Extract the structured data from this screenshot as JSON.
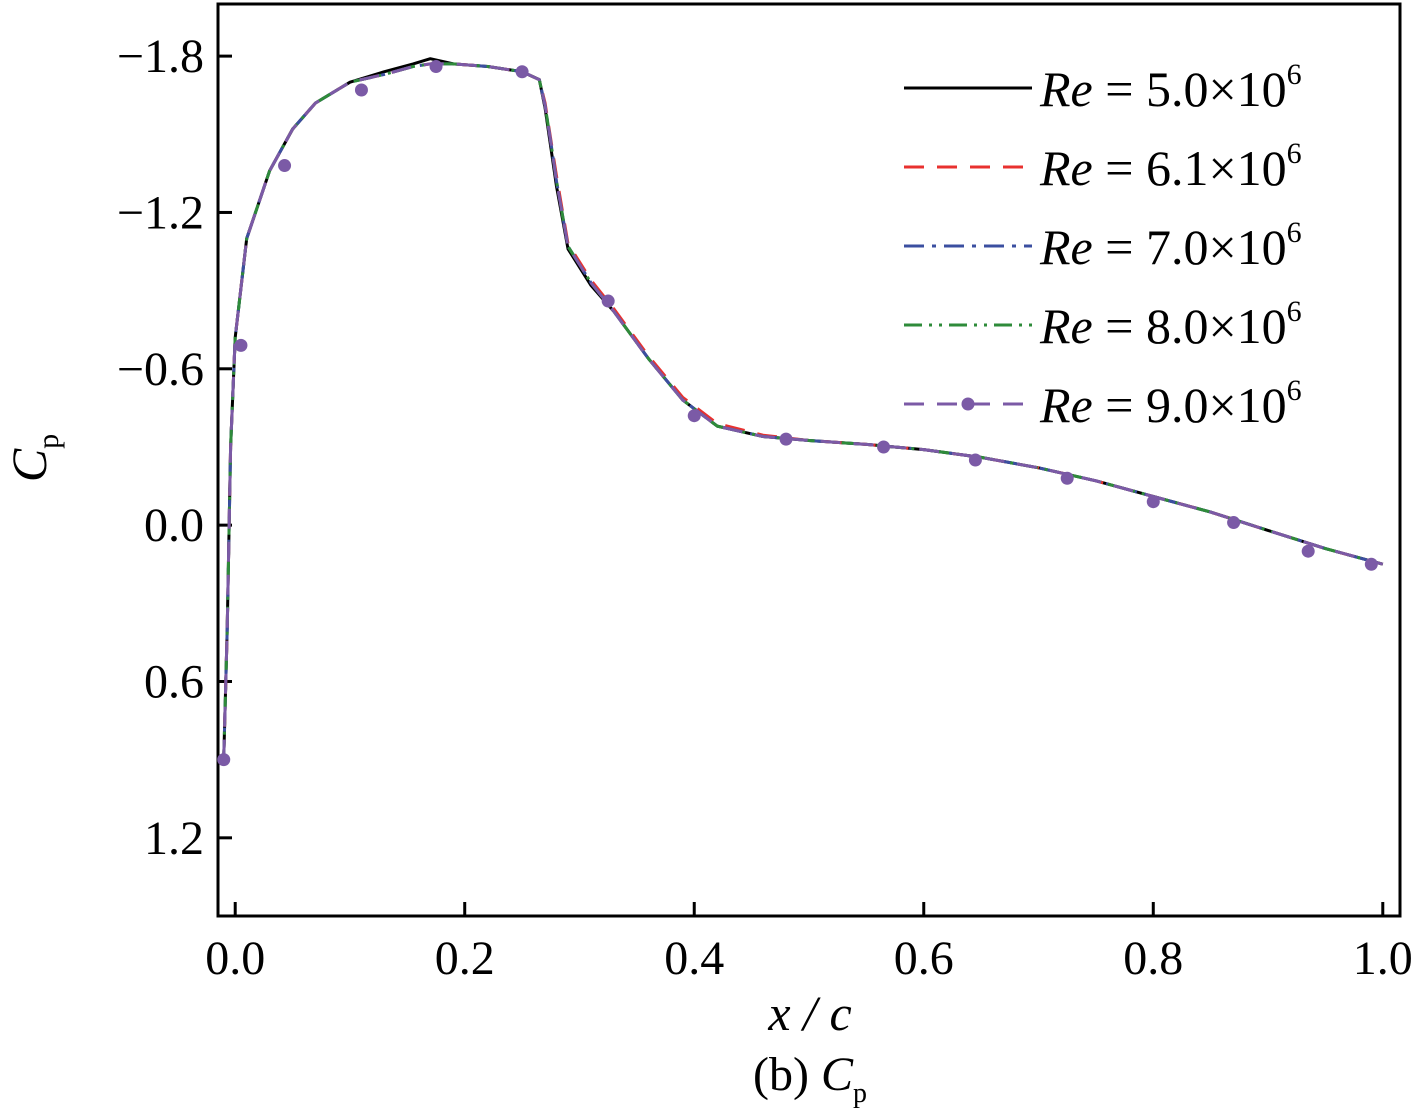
{
  "chart_data": {
    "type": "line",
    "title": "",
    "caption": {
      "prefix": "(b) ",
      "var": "C",
      "sub": "p"
    },
    "xlabel": "x / c",
    "ylabel": {
      "var": "C",
      "sub": "p"
    },
    "xlim": [
      -0.015,
      1.015
    ],
    "ylim": [
      1.5,
      -2.0
    ],
    "y_inverted": true,
    "xticks": [
      "0.0",
      "0.2",
      "0.4",
      "0.6",
      "0.8",
      "1.0"
    ],
    "xtick_values": [
      0.0,
      0.2,
      0.4,
      0.6,
      0.8,
      1.0
    ],
    "yticks": [
      "−1.8",
      "−1.2",
      "−0.6",
      "0.0",
      "0.6",
      "1.2"
    ],
    "ytick_values": [
      -1.8,
      -1.2,
      -0.6,
      0.0,
      0.6,
      1.2
    ],
    "grid": false,
    "legend_position": "top-right",
    "series": [
      {
        "name_var": "Re",
        "name_eq": " = ",
        "name_num": "5.0×10",
        "name_exp": "6",
        "color": "#000000",
        "dash": "",
        "marker": false,
        "x": [
          -0.01,
          -0.007,
          -0.004,
          0.0,
          0.01,
          0.03,
          0.05,
          0.07,
          0.1,
          0.13,
          0.155,
          0.17,
          0.19,
          0.22,
          0.25,
          0.265,
          0.27,
          0.275,
          0.28,
          0.29,
          0.31,
          0.33,
          0.36,
          0.39,
          0.42,
          0.46,
          0.5,
          0.55,
          0.6,
          0.65,
          0.7,
          0.75,
          0.8,
          0.85,
          0.9,
          0.95,
          1.0
        ],
        "y": [
          0.9,
          0.4,
          -0.3,
          -0.72,
          -1.1,
          -1.36,
          -1.52,
          -1.62,
          -1.7,
          -1.74,
          -1.77,
          -1.79,
          -1.77,
          -1.76,
          -1.74,
          -1.71,
          -1.6,
          -1.45,
          -1.3,
          -1.06,
          -0.92,
          -0.82,
          -0.64,
          -0.48,
          -0.38,
          -0.34,
          -0.325,
          -0.31,
          -0.29,
          -0.26,
          -0.22,
          -0.17,
          -0.11,
          -0.05,
          0.02,
          0.09,
          0.15
        ]
      },
      {
        "name_var": "Re",
        "name_eq": " = ",
        "name_num": "6.1×10",
        "name_exp": "6",
        "color": "#e8312f",
        "dash": "20,13",
        "marker": false,
        "x": [
          -0.01,
          -0.007,
          -0.004,
          0.0,
          0.01,
          0.03,
          0.05,
          0.07,
          0.1,
          0.13,
          0.155,
          0.17,
          0.19,
          0.22,
          0.25,
          0.265,
          0.27,
          0.275,
          0.28,
          0.29,
          0.31,
          0.33,
          0.36,
          0.39,
          0.42,
          0.46,
          0.5,
          0.55,
          0.6,
          0.65,
          0.7,
          0.75,
          0.8,
          0.85,
          0.9,
          0.95,
          1.0
        ],
        "y": [
          0.9,
          0.4,
          -0.3,
          -0.72,
          -1.1,
          -1.36,
          -1.52,
          -1.62,
          -1.7,
          -1.73,
          -1.76,
          -1.77,
          -1.77,
          -1.76,
          -1.74,
          -1.71,
          -1.62,
          -1.48,
          -1.34,
          -1.08,
          -0.94,
          -0.83,
          -0.65,
          -0.49,
          -0.39,
          -0.345,
          -0.325,
          -0.31,
          -0.29,
          -0.26,
          -0.22,
          -0.17,
          -0.11,
          -0.05,
          0.02,
          0.09,
          0.15
        ]
      },
      {
        "name_var": "Re",
        "name_eq": " = ",
        "name_num": "7.0×10",
        "name_exp": "6",
        "color": "#3b4fa0",
        "dash": "20,8,4,8",
        "marker": false,
        "x": [
          -0.01,
          -0.007,
          -0.004,
          0.0,
          0.01,
          0.03,
          0.05,
          0.07,
          0.1,
          0.13,
          0.155,
          0.17,
          0.19,
          0.22,
          0.25,
          0.265,
          0.27,
          0.275,
          0.28,
          0.29,
          0.31,
          0.33,
          0.36,
          0.39,
          0.42,
          0.46,
          0.5,
          0.55,
          0.6,
          0.65,
          0.7,
          0.75,
          0.8,
          0.85,
          0.9,
          0.95,
          1.0
        ],
        "y": [
          0.9,
          0.4,
          -0.3,
          -0.72,
          -1.1,
          -1.36,
          -1.52,
          -1.62,
          -1.7,
          -1.73,
          -1.76,
          -1.77,
          -1.77,
          -1.76,
          -1.74,
          -1.71,
          -1.61,
          -1.47,
          -1.32,
          -1.07,
          -0.93,
          -0.82,
          -0.64,
          -0.48,
          -0.38,
          -0.34,
          -0.325,
          -0.31,
          -0.29,
          -0.26,
          -0.22,
          -0.17,
          -0.11,
          -0.05,
          0.02,
          0.09,
          0.15
        ]
      },
      {
        "name_var": "Re",
        "name_eq": " = ",
        "name_num": "8.0×10",
        "name_exp": "6",
        "color": "#2e8b3a",
        "dash": "18,7,3,7,3,7",
        "marker": false,
        "x": [
          -0.01,
          -0.007,
          -0.004,
          0.0,
          0.01,
          0.03,
          0.05,
          0.07,
          0.1,
          0.13,
          0.155,
          0.17,
          0.19,
          0.22,
          0.25,
          0.265,
          0.27,
          0.275,
          0.28,
          0.29,
          0.31,
          0.33,
          0.36,
          0.39,
          0.42,
          0.46,
          0.5,
          0.55,
          0.6,
          0.65,
          0.7,
          0.75,
          0.8,
          0.85,
          0.9,
          0.95,
          1.0
        ],
        "y": [
          0.9,
          0.4,
          -0.3,
          -0.72,
          -1.1,
          -1.36,
          -1.52,
          -1.62,
          -1.7,
          -1.73,
          -1.76,
          -1.77,
          -1.77,
          -1.76,
          -1.74,
          -1.71,
          -1.61,
          -1.47,
          -1.32,
          -1.07,
          -0.93,
          -0.82,
          -0.64,
          -0.48,
          -0.38,
          -0.34,
          -0.325,
          -0.31,
          -0.29,
          -0.26,
          -0.22,
          -0.17,
          -0.11,
          -0.05,
          0.02,
          0.09,
          0.15
        ]
      },
      {
        "name_var": "Re",
        "name_eq": " = ",
        "name_num": "9.0×10",
        "name_exp": "6",
        "color": "#7b5aa6",
        "dash": "20,13",
        "marker": true,
        "x": [
          -0.01,
          -0.007,
          -0.004,
          0.0,
          0.01,
          0.03,
          0.05,
          0.07,
          0.1,
          0.13,
          0.155,
          0.17,
          0.19,
          0.22,
          0.25,
          0.265,
          0.27,
          0.275,
          0.28,
          0.29,
          0.31,
          0.33,
          0.36,
          0.39,
          0.42,
          0.46,
          0.5,
          0.55,
          0.6,
          0.65,
          0.7,
          0.75,
          0.8,
          0.85,
          0.9,
          0.95,
          1.0
        ],
        "y": [
          0.9,
          0.4,
          -0.3,
          -0.72,
          -1.1,
          -1.36,
          -1.52,
          -1.62,
          -1.7,
          -1.73,
          -1.76,
          -1.77,
          -1.77,
          -1.76,
          -1.74,
          -1.71,
          -1.61,
          -1.47,
          -1.32,
          -1.07,
          -0.93,
          -0.82,
          -0.64,
          -0.48,
          -0.38,
          -0.34,
          -0.325,
          -0.31,
          -0.29,
          -0.26,
          -0.22,
          -0.17,
          -0.11,
          -0.05,
          0.02,
          0.09,
          0.15
        ],
        "marker_x": [
          -0.01,
          0.005,
          0.043,
          0.11,
          0.175,
          0.25,
          0.325,
          0.4,
          0.48,
          0.565,
          0.645,
          0.725,
          0.8,
          0.87,
          0.935,
          0.99
        ],
        "marker_y": [
          0.9,
          -0.69,
          -1.38,
          -1.67,
          -1.76,
          -1.74,
          -0.86,
          -0.42,
          -0.33,
          -0.3,
          -0.25,
          -0.18,
          -0.09,
          -0.01,
          0.1,
          0.15
        ]
      }
    ]
  }
}
